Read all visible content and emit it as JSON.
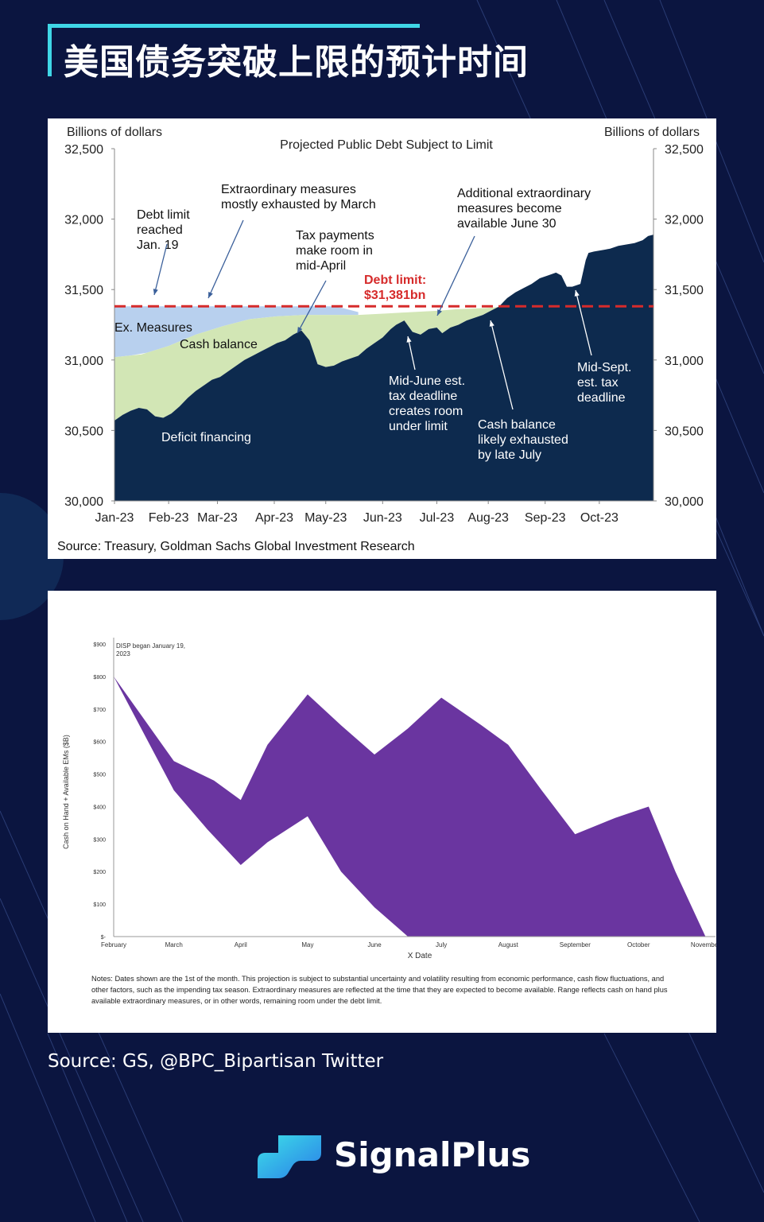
{
  "title": "美国债务突破上限的预计时间",
  "source": "Source: GS, @BPC_Bipartisan Twitter",
  "brand": {
    "name": "SignalPlus",
    "accent": "#3fd6e6"
  },
  "chart_data": [
    {
      "type": "area",
      "title": "Projected Public Debt Subject to Limit",
      "ylabel_left": "Billions of dollars",
      "ylabel_right": "Billions of dollars",
      "ylim": [
        30000,
        32500
      ],
      "yticks": [
        30000,
        30500,
        31000,
        31500,
        32000,
        32500
      ],
      "ytick_labels": [
        "30,000",
        "30,500",
        "31,000",
        "31,500",
        "32,000",
        "32,500"
      ],
      "categories": [
        "Jan-23",
        "Feb-23",
        "Mar-23",
        "Apr-23",
        "May-23",
        "Jun-23",
        "Jul-23",
        "Aug-23",
        "Sep-23",
        "Oct-23"
      ],
      "x_range": [
        0,
        9.95
      ],
      "debt_limit": 31381,
      "debt_limit_label": [
        "Debt limit:",
        "$31,381bn"
      ],
      "source": "Source: Treasury, Goldman Sachs Global Investment Research",
      "series": [
        {
          "name": "Deficit financing",
          "color": "#0d2a4e",
          "x": [
            0,
            0.15,
            0.3,
            0.45,
            0.6,
            0.75,
            0.9,
            1.05,
            1.2,
            1.35,
            1.5,
            1.65,
            1.8,
            1.95,
            2.1,
            2.25,
            2.4,
            2.55,
            2.7,
            2.85,
            3.0,
            3.15,
            3.3,
            3.45,
            3.6,
            3.75,
            3.9,
            4.05,
            4.2,
            4.35,
            4.5,
            4.65,
            4.8,
            4.95,
            5.1,
            5.2,
            5.35,
            5.5,
            5.65,
            5.8,
            5.95,
            6.05,
            6.2,
            6.35,
            6.5,
            6.65,
            6.8,
            6.95,
            7.1,
            7.25,
            7.4,
            7.55,
            7.7,
            7.85,
            8.0,
            8.15,
            8.25,
            8.35,
            8.45,
            8.6,
            8.7,
            8.75,
            8.85,
            9.0,
            9.15,
            9.3,
            9.45,
            9.6,
            9.75,
            9.85,
            9.95
          ],
          "values": [
            30570,
            30610,
            30640,
            30660,
            30650,
            30600,
            30590,
            30620,
            30670,
            30730,
            30780,
            30820,
            30860,
            30880,
            30920,
            30960,
            31000,
            31030,
            31060,
            31090,
            31120,
            31140,
            31180,
            31210,
            31140,
            30970,
            30950,
            30960,
            30990,
            31010,
            31030,
            31080,
            31120,
            31160,
            31220,
            31250,
            31280,
            31200,
            31180,
            31220,
            31230,
            31190,
            31230,
            31250,
            31280,
            31300,
            31320,
            31350,
            31380,
            31440,
            31480,
            31510,
            31540,
            31580,
            31600,
            31620,
            31600,
            31520,
            31520,
            31540,
            31710,
            31760,
            31770,
            31780,
            31790,
            31810,
            31820,
            31830,
            31850,
            31880,
            31890
          ]
        },
        {
          "name": "Cash balance",
          "color": "#d2e6b5",
          "x": [
            0,
            0.5,
            1.0,
            1.5,
            2.0,
            2.5,
            3.0,
            3.5,
            4.0,
            4.5,
            5.0,
            5.5,
            6.0,
            6.3,
            6.6,
            6.9,
            7.15,
            7.3
          ],
          "values": [
            31020,
            31040,
            31100,
            31180,
            31240,
            31290,
            31310,
            31320,
            31320,
            31320,
            31330,
            31340,
            31350,
            31360,
            31365,
            31370,
            31378,
            31381
          ]
        },
        {
          "name": "Ex. Measures",
          "color": "#b8d0ee",
          "x": [
            0,
            0.3,
            0.6,
            1.0,
            1.5,
            2.0,
            2.5,
            3.0,
            3.5,
            4.0,
            4.2,
            4.5
          ],
          "values": [
            31381,
            31381,
            31381,
            31381,
            31381,
            31381,
            31381,
            31381,
            31381,
            31381,
            31370,
            31340
          ]
        }
      ],
      "annotations": [
        {
          "text": [
            "Debt limit",
            "reached",
            "Jan. 19"
          ]
        },
        {
          "text": [
            "Extraordinary  measures",
            "mostly exhausted by March"
          ]
        },
        {
          "text": [
            "Tax payments",
            "make room in",
            "mid-April"
          ]
        },
        {
          "text": [
            "Additional extraordinary",
            "measures become",
            "available  June  30"
          ]
        },
        {
          "text": [
            "Mid-June  est.",
            "tax deadline",
            "creates room",
            "under  limit"
          ]
        },
        {
          "text": [
            "Cash balance",
            "likely exhausted",
            "by late July"
          ]
        },
        {
          "text": [
            "Mid-Sept.",
            "est. tax",
            "deadline"
          ]
        }
      ]
    },
    {
      "type": "area",
      "title": "",
      "annotation": [
        "DISP began January 19,",
        "2023"
      ],
      "ylabel": "Cash on Hand + Available EMs ($B)",
      "xlabel": "X Date",
      "ylim": [
        0,
        900
      ],
      "yticks": [
        0,
        100,
        200,
        300,
        400,
        500,
        600,
        700,
        800,
        900
      ],
      "ytick_labels": [
        "$-",
        "$100",
        "$200",
        "$300",
        "$400",
        "$500",
        "$600",
        "$700",
        "$800",
        "$900"
      ],
      "categories": [
        "February",
        "March",
        "April",
        "May",
        "June",
        "July",
        "August",
        "September",
        "October",
        "November"
      ],
      "color": "#6a35a0",
      "upper": {
        "x": [
          0,
          0.9,
          1.5,
          1.9,
          2.3,
          2.9,
          3.4,
          3.9,
          4.4,
          4.9,
          5.5,
          5.9,
          6.4,
          6.9,
          7.5,
          8.0,
          8.4,
          8.85
        ],
        "values": [
          800,
          540,
          480,
          420,
          590,
          745,
          650,
          560,
          640,
          735,
          650,
          590,
          450,
          315,
          365,
          400,
          200,
          0
        ]
      },
      "lower": {
        "x": [
          0,
          0.9,
          1.4,
          1.9,
          2.3,
          2.9,
          3.4,
          3.9,
          4.4,
          8.85
        ],
        "values": [
          800,
          450,
          330,
          220,
          290,
          370,
          200,
          90,
          0,
          0
        ]
      },
      "notes": [
        "Notes: Dates shown are the 1st of the month. This projection is subject to substantial uncertainty and volatility resulting from economic performance, cash flow fluctuations, and",
        "other factors, such as the impending tax season. Extraordinary measures are reflected at the time that they are expected to become available. Range reflects cash on hand plus",
        "available extraordinary measures, or in other words, remaining room under the debt limit."
      ]
    }
  ]
}
